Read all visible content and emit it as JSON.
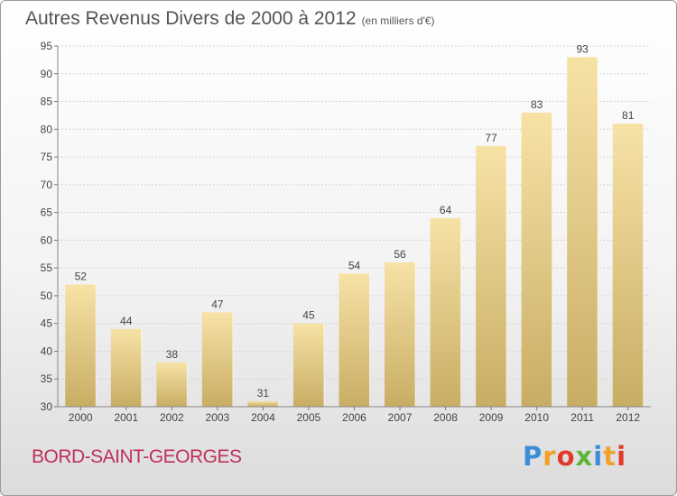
{
  "title": "Autres Revenus Divers de 2000 à 2012",
  "title_unit": "(en milliers d'€)",
  "place": "BORD-SAINT-GEORGES",
  "logo": {
    "text": "Proxiti",
    "colors": [
      "#3a8ed8",
      "#f2a12a",
      "#e23a2a",
      "#5fb53a"
    ]
  },
  "colors": {
    "bar_top": "#f7e2a6",
    "bar_bottom": "#c8ad64",
    "grid": "#d4d4d4",
    "place": "#c0305a"
  },
  "chart_data": {
    "type": "bar",
    "categories": [
      "2000",
      "2001",
      "2002",
      "2003",
      "2004",
      "2005",
      "2006",
      "2007",
      "2008",
      "2009",
      "2010",
      "2011",
      "2012"
    ],
    "values": [
      52,
      44,
      38,
      47,
      31,
      45,
      54,
      56,
      64,
      77,
      83,
      93,
      81
    ],
    "title": "Autres Revenus Divers de 2000 à 2012",
    "xlabel": "",
    "ylabel": "",
    "ylim": [
      30,
      95
    ],
    "yticks": [
      30,
      35,
      40,
      45,
      50,
      55,
      60,
      65,
      70,
      75,
      80,
      85,
      90,
      95
    ],
    "grid": true,
    "data_labels": true
  }
}
